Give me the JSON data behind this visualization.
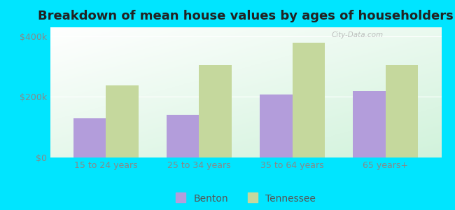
{
  "title": "Breakdown of mean house values by ages of householders",
  "categories": [
    "15 to 24 years",
    "25 to 34 years",
    "35 to 64 years",
    "65 years+"
  ],
  "benton_values": [
    130000,
    140000,
    207000,
    220000
  ],
  "tennessee_values": [
    237000,
    305000,
    380000,
    305000
  ],
  "benton_color": "#b39ddb",
  "tennessee_color": "#c5d89d",
  "background_color": "#00e5ff",
  "yticks": [
    0,
    200000,
    400000
  ],
  "ylim": [
    0,
    430000
  ],
  "bar_width": 0.35,
  "legend_labels": [
    "Benton",
    "Tennessee"
  ],
  "watermark": "City-Data.com",
  "title_fontsize": 13,
  "tick_fontsize": 9,
  "legend_fontsize": 10
}
